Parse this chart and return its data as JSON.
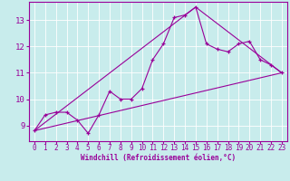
{
  "xlabel": "Windchill (Refroidissement éolien,°C)",
  "background_color": "#c8ecec",
  "line_color": "#990099",
  "xlim": [
    -0.5,
    23.5
  ],
  "ylim": [
    8.4,
    13.7
  ],
  "xticks": [
    0,
    1,
    2,
    3,
    4,
    5,
    6,
    7,
    8,
    9,
    10,
    11,
    12,
    13,
    14,
    15,
    16,
    17,
    18,
    19,
    20,
    21,
    22,
    23
  ],
  "yticks": [
    9,
    10,
    11,
    12,
    13
  ],
  "series1_x": [
    0,
    1,
    2,
    3,
    4,
    5,
    6,
    7,
    8,
    9,
    10,
    11,
    12,
    13,
    14,
    15,
    16,
    17,
    18,
    19,
    20,
    21,
    22,
    23
  ],
  "series1_y": [
    8.8,
    9.4,
    9.5,
    9.5,
    9.2,
    8.7,
    9.4,
    10.3,
    10.0,
    10.0,
    10.4,
    11.5,
    12.1,
    13.1,
    13.2,
    13.5,
    12.1,
    11.9,
    11.8,
    12.1,
    12.2,
    11.5,
    11.3,
    11.0
  ],
  "series2_x": [
    0,
    23
  ],
  "series2_y": [
    8.8,
    11.0
  ],
  "series3_x": [
    0,
    15,
    23
  ],
  "series3_y": [
    8.8,
    13.5,
    11.0
  ],
  "xlabel_fontsize": 5.5,
  "tick_fontsize": 5.5,
  "ytick_fontsize": 6.5
}
